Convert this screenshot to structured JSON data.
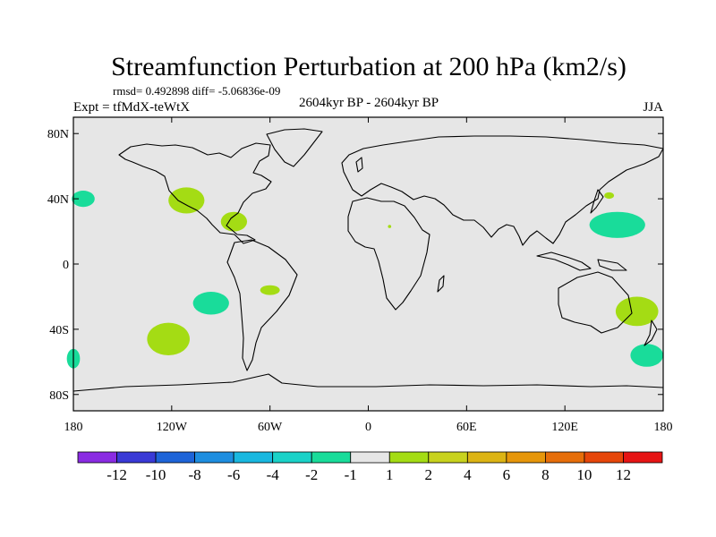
{
  "chart_data": {
    "type": "map",
    "title": "Streamfunction Perturbation at 200 hPa (km2/s)",
    "stats": "rmsd= 0.492898 diff= -5.06836e-09",
    "subtitle_left": "Expt = tfMdX-teWtX",
    "subtitle_center": "2604kyr BP - 2604kyr BP",
    "subtitle_right": "JJA",
    "lat_range": [
      -90,
      90
    ],
    "lon_range": [
      -180,
      180
    ],
    "lat_ticks": [
      {
        "value": 80,
        "label": "80N"
      },
      {
        "value": 40,
        "label": "40N"
      },
      {
        "value": 0,
        "label": "0"
      },
      {
        "value": -40,
        "label": "40S"
      },
      {
        "value": -80,
        "label": "80S"
      }
    ],
    "lon_ticks": [
      {
        "value": -180,
        "label": "180"
      },
      {
        "value": -120,
        "label": "120W"
      },
      {
        "value": -60,
        "label": "60W"
      },
      {
        "value": 0,
        "label": "0"
      },
      {
        "value": 60,
        "label": "60E"
      },
      {
        "value": 120,
        "label": "120E"
      },
      {
        "value": 180,
        "label": "180"
      }
    ],
    "colorbar": {
      "colors": [
        "#8a2be2",
        "#3a3ad6",
        "#1e64d8",
        "#1e8ee0",
        "#19b8e0",
        "#1ad2c8",
        "#19dc9a",
        "#e6e6e6",
        "#a4dc14",
        "#c8d21e",
        "#dcb414",
        "#e6960a",
        "#e66e0a",
        "#e6460a",
        "#e61414"
      ],
      "labels": [
        "-12",
        "-10",
        "-8",
        "-6",
        "-4",
        "-2",
        "-1",
        "1",
        "2",
        "4",
        "6",
        "8",
        "10",
        "12"
      ]
    },
    "anomalies": [
      {
        "name": "n-pacific-west-positive",
        "lon": -111,
        "lat": 39,
        "rlon": 11,
        "rlat": 8,
        "color": "#a4dc14"
      },
      {
        "name": "gulf-positive",
        "lon": -82,
        "lat": 26,
        "rlon": 8,
        "rlat": 6,
        "color": "#a4dc14"
      },
      {
        "name": "n-pacific-east-negative",
        "lon": -174,
        "lat": 40,
        "rlon": 7,
        "rlat": 5,
        "color": "#19dc9a"
      },
      {
        "name": "s-pacific-positive",
        "lon": -122,
        "lat": -46,
        "rlon": 13,
        "rlat": 10,
        "color": "#a4dc14"
      },
      {
        "name": "s-pacific-negative",
        "lon": -96,
        "lat": -24,
        "rlon": 11,
        "rlat": 7,
        "color": "#19dc9a"
      },
      {
        "name": "s-america-positive",
        "lon": -60,
        "lat": -16,
        "rlon": 6,
        "rlat": 3,
        "color": "#a4dc14"
      },
      {
        "name": "s-pacific-far-negative",
        "lon": -180,
        "lat": -58,
        "rlon": 4,
        "rlat": 6,
        "color": "#19dc9a"
      },
      {
        "name": "w-pacific-negative",
        "lon": 152,
        "lat": 24,
        "rlon": 17,
        "rlat": 8,
        "color": "#19dc9a"
      },
      {
        "name": "japan-positive",
        "lon": 147,
        "lat": 42,
        "rlon": 3,
        "rlat": 2,
        "color": "#a4dc14"
      },
      {
        "name": "nz-positive",
        "lon": 164,
        "lat": -29,
        "rlon": 13,
        "rlat": 9,
        "color": "#a4dc14"
      },
      {
        "name": "s-ocean-negative",
        "lon": 170,
        "lat": -56,
        "rlon": 10,
        "rlat": 7,
        "color": "#19dc9a"
      },
      {
        "name": "atlantic-speck",
        "lon": 13,
        "lat": 23,
        "rlon": 1,
        "rlat": 1,
        "color": "#a4dc14"
      }
    ]
  }
}
